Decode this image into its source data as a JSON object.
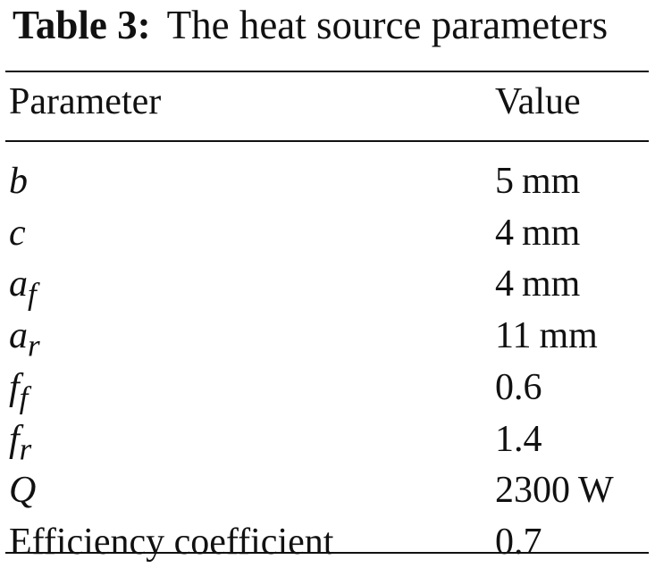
{
  "caption": {
    "label": "Table 3:",
    "text": "The heat source parameters"
  },
  "table": {
    "headers": {
      "parameter": "Parameter",
      "value": "Value"
    },
    "rows": [
      {
        "symbol": "b",
        "subscript": "",
        "text": "",
        "number": "5",
        "unit": "mm"
      },
      {
        "symbol": "c",
        "subscript": "",
        "text": "",
        "number": "4",
        "unit": "mm"
      },
      {
        "symbol": "a",
        "subscript": "f",
        "text": "",
        "number": "4",
        "unit": "mm"
      },
      {
        "symbol": "a",
        "subscript": "r",
        "text": "",
        "number": "11",
        "unit": "mm"
      },
      {
        "symbol": "f",
        "subscript": "f",
        "text": "",
        "number": "0.6",
        "unit": ""
      },
      {
        "symbol": "f",
        "subscript": "r",
        "text": "",
        "number": "1.4",
        "unit": ""
      },
      {
        "symbol": "Q",
        "subscript": "",
        "text": "",
        "number": "2300",
        "unit": "W"
      },
      {
        "symbol": "",
        "subscript": "",
        "text": "Efficiency coefficient",
        "number": "0.7",
        "unit": ""
      }
    ]
  }
}
